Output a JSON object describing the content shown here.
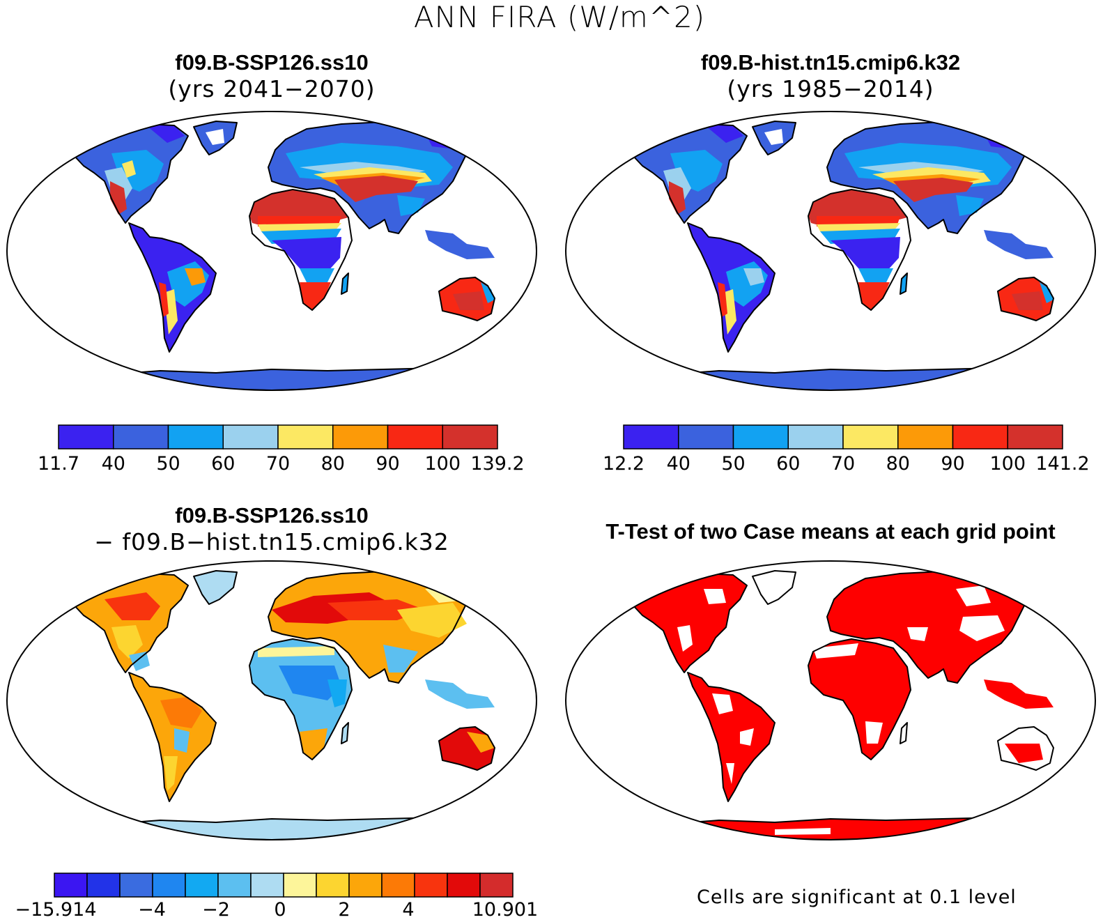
{
  "title": "ANN FIRA (W/m^2)",
  "panels": [
    {
      "id": "case1",
      "line1": "f09.B-SSP126.ss10",
      "line2": "(yrs 2041−2070)",
      "colorbar": {
        "colors": [
          "#3b22f0",
          "#3b62de",
          "#12a2f2",
          "#9bd1ee",
          "#fce863",
          "#fc9a08",
          "#f82814",
          "#d4312c"
        ],
        "labels": [
          "11.7",
          "40",
          "50",
          "60",
          "70",
          "80",
          "90",
          "100",
          "139.2"
        ]
      }
    },
    {
      "id": "case2",
      "line1": "f09.B-hist.tn15.cmip6.k32",
      "line2": "(yrs 1985−2014)",
      "colorbar": {
        "colors": [
          "#3b22f0",
          "#3b62de",
          "#12a2f2",
          "#9bd1ee",
          "#fce863",
          "#fc9a08",
          "#f82814",
          "#d4312c"
        ],
        "labels": [
          "12.2",
          "40",
          "50",
          "60",
          "70",
          "80",
          "90",
          "100",
          "141.2"
        ]
      }
    },
    {
      "id": "diff",
      "line1": "f09.B-SSP126.ss10",
      "line2": "− f09.B−hist.tn15.cmip6.k32",
      "colorbar": {
        "colors": [
          "#3b16f2",
          "#2233e8",
          "#3a6ce0",
          "#1f86f0",
          "#12a9f2",
          "#5cbff0",
          "#aedcf2",
          "#fdf59a",
          "#fcd530",
          "#fca60a",
          "#fc7a06",
          "#f8340e",
          "#e20a0a",
          "#d42c2c"
        ],
        "labels": [
          "−15.914",
          "−4",
          "−2",
          "0",
          "2",
          "4",
          "10.901"
        ]
      }
    },
    {
      "id": "ttest",
      "line1": "T-Test of two Case means at each grid point",
      "note": "Cells are significant at 0.1 level",
      "significant_color": "#fe0000"
    }
  ]
}
